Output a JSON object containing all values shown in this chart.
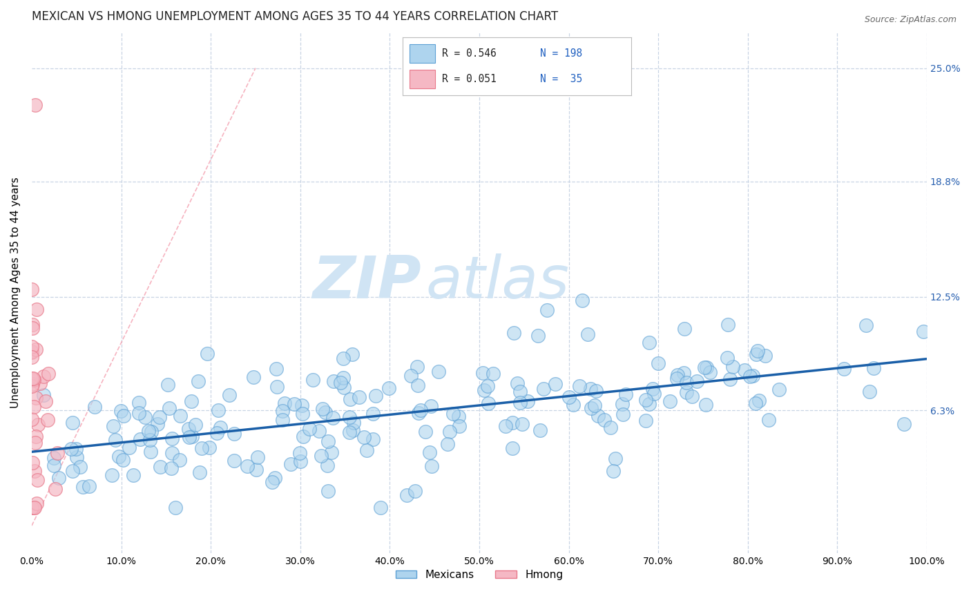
{
  "title": "MEXICAN VS HMONG UNEMPLOYMENT AMONG AGES 35 TO 44 YEARS CORRELATION CHART",
  "source": "Source: ZipAtlas.com",
  "ylabel": "Unemployment Among Ages 35 to 44 years",
  "ytick_values": [
    0.063,
    0.125,
    0.188,
    0.25
  ],
  "ytick_labels": [
    "6.3%",
    "12.5%",
    "18.8%",
    "25.0%"
  ],
  "xlim": [
    0.0,
    1.0
  ],
  "ylim": [
    -0.015,
    0.27
  ],
  "mexican_color": "#aed4ee",
  "hmong_color": "#f5b8c4",
  "mexican_edge": "#5b9fd4",
  "hmong_edge": "#e8788a",
  "trend_mexican_color": "#1a5fa8",
  "trend_hmong_color": "#e08898",
  "mexican_R": 0.546,
  "mexican_N": 198,
  "hmong_R": 0.051,
  "hmong_N": 35,
  "legend_label_mexican": "Mexicans",
  "legend_label_hmong": "Hmong",
  "watermark_zip": "ZIP",
  "watermark_atlas": "atlas",
  "watermark_color": "#d0e4f4",
  "background_color": "#ffffff",
  "grid_color": "#c8d4e4",
  "title_fontsize": 12,
  "axis_label_fontsize": 11,
  "tick_fontsize": 10,
  "source_fontsize": 9,
  "legend_fontsize": 11
}
